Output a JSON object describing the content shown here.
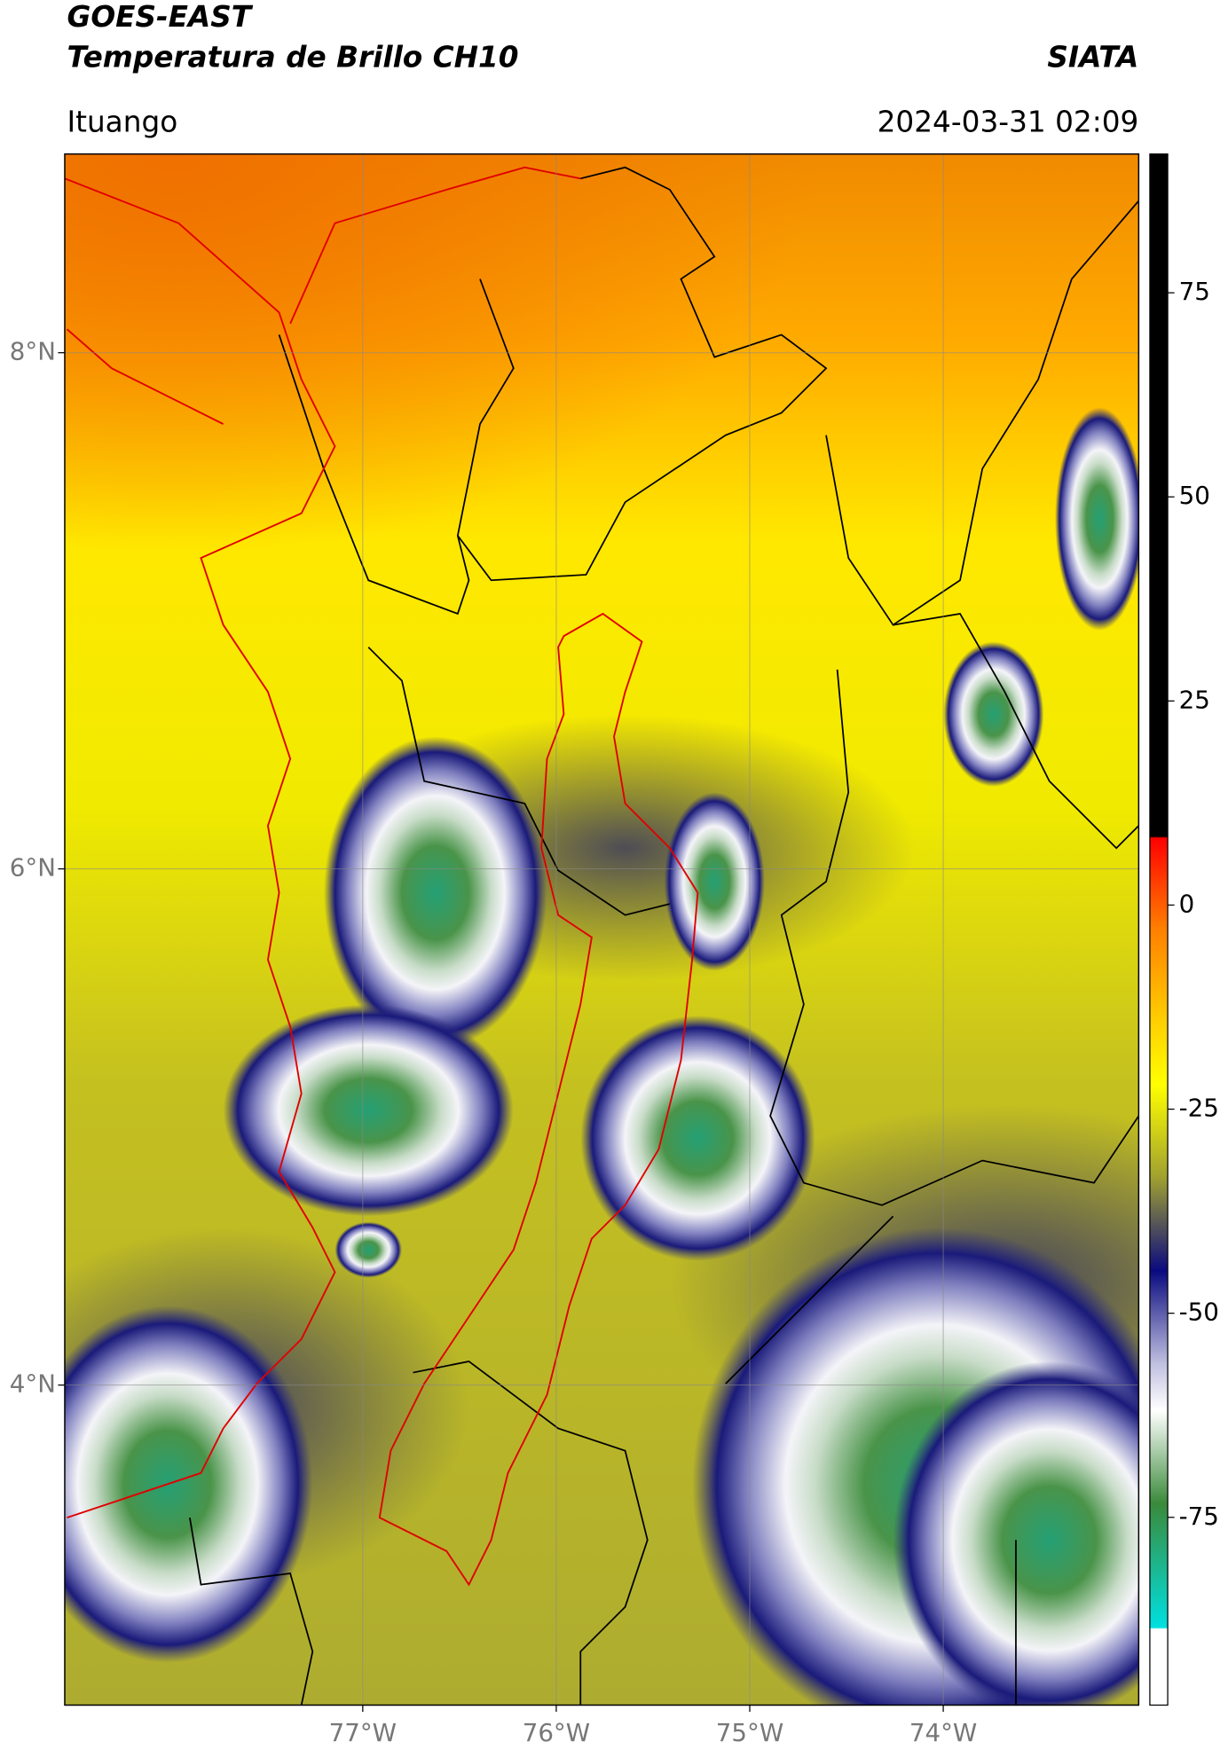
{
  "header": {
    "satellite": "GOES-EAST",
    "product": "Temperatura de Brillo CH10",
    "source": "SIATA",
    "region": "Ituango",
    "datetime": "2024-03-31 02:09"
  },
  "map": {
    "xlim": [
      -78.54,
      -72.99
    ],
    "ylim": [
      2.76,
      8.77
    ],
    "xticks": [
      {
        "value": -77,
        "label": "77°W"
      },
      {
        "value": -76,
        "label": "76°W"
      },
      {
        "value": -75,
        "label": "75°W"
      },
      {
        "value": -74,
        "label": "74°W"
      }
    ],
    "yticks": [
      {
        "value": 8,
        "label": "8°N"
      },
      {
        "value": 6,
        "label": "6°N"
      },
      {
        "value": 4,
        "label": "4°N"
      }
    ],
    "grid": true
  },
  "colorbar": {
    "lim": [
      -98,
      92
    ],
    "ticks": [
      75,
      50,
      25,
      0,
      -25,
      -50,
      -75
    ]
  }
}
